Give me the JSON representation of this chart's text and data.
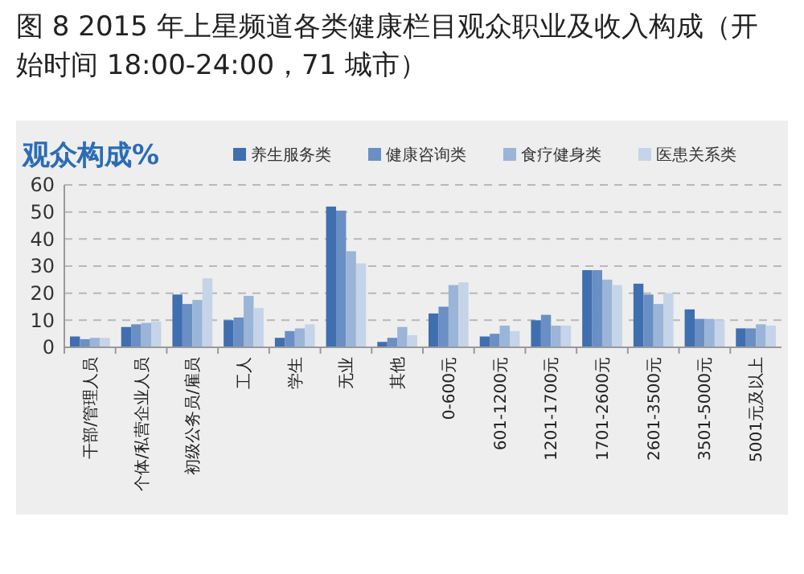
{
  "chart_data": {
    "type": "bar",
    "title": "图 8 2015 年上星频道各类健康栏目观众职业及收入构成（开始时间 18:00-24:00，71 城市）",
    "ylabel": "观众构成%",
    "categories": [
      "干部/管理人员",
      "个体/私营企业人员",
      "初级公务员/雇员",
      "工人",
      "学生",
      "无业",
      "其他",
      "0-600元",
      "601-1200元",
      "1201-1700元",
      "1701-2600元",
      "2601-3500元",
      "3501-5000元",
      "5001元及以上"
    ],
    "series": [
      {
        "name": "养生服务类",
        "color": "#3f6faf",
        "values": [
          4,
          7.5,
          19.5,
          10,
          3.5,
          52,
          2,
          12.5,
          4,
          10,
          28.5,
          23.5,
          14,
          7
        ]
      },
      {
        "name": "健康咨询类",
        "color": "#6a8fc4",
        "values": [
          3,
          8.5,
          16,
          11,
          6,
          50.5,
          3.5,
          15,
          5,
          12,
          28.5,
          19.5,
          10.5,
          7
        ]
      },
      {
        "name": "食疗健身类",
        "color": "#9ab5d8",
        "values": [
          3.5,
          9,
          17.5,
          19,
          7,
          35.5,
          7.5,
          23,
          8,
          8,
          25,
          16,
          10.5,
          8.5
        ]
      },
      {
        "name": "医患关系类",
        "color": "#c5d4e8",
        "values": [
          3.5,
          9.5,
          25.5,
          14.5,
          8.5,
          31,
          4.5,
          24,
          6,
          8,
          23,
          20,
          10,
          8
        ]
      }
    ],
    "ylim": [
      0,
      60
    ],
    "yticks": [
      0,
      10,
      20,
      30,
      40,
      50,
      60
    ],
    "grid": "y",
    "legend": "top right"
  }
}
